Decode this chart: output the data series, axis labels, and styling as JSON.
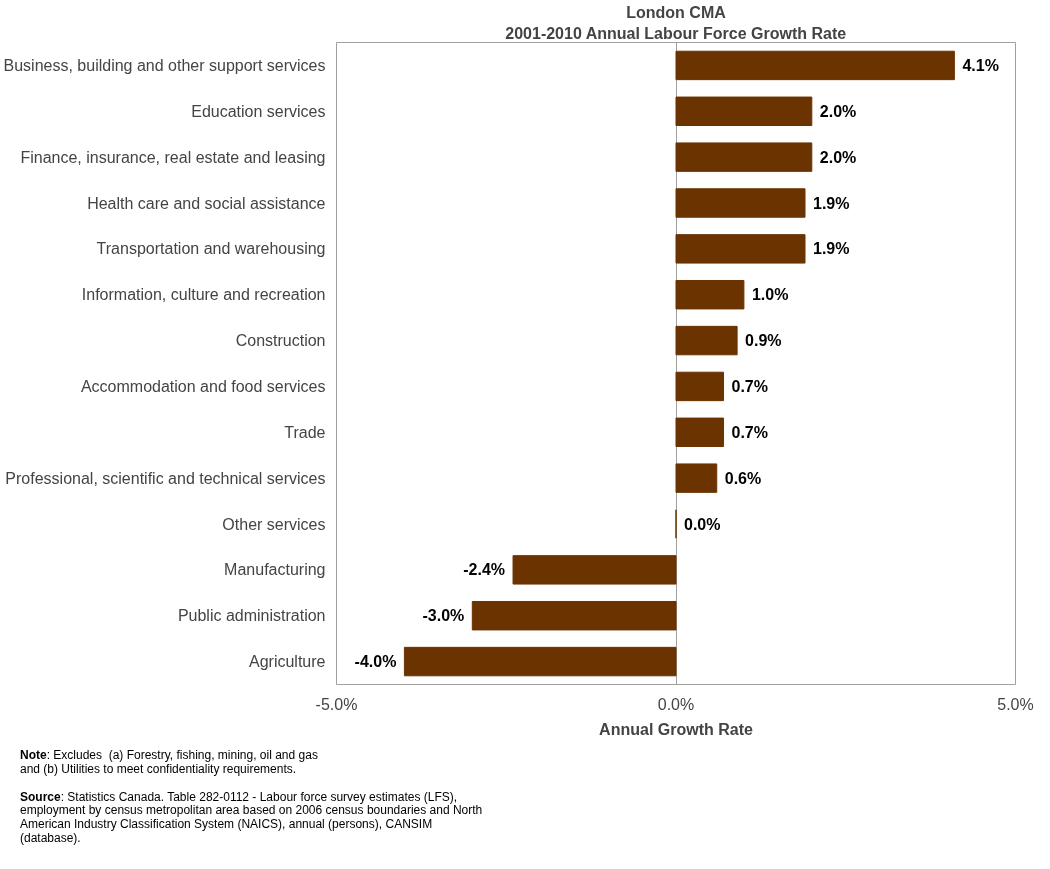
{
  "chart_data": {
    "type": "bar",
    "orientation": "horizontal",
    "title": "London CMA",
    "subtitle": "2001-2010 Annual Labour Force Growth Rate",
    "xlabel": "Annual Growth Rate",
    "categories": [
      "Business, building and other support services",
      "Education services",
      "Finance, insurance, real estate and leasing",
      "Health care and social assistance",
      "Transportation and warehousing",
      "Information, culture and recreation",
      "Construction",
      "Accommodation and food services",
      "Trade",
      "Professional, scientific and technical services",
      "Other services",
      "Manufacturing",
      "Public administration",
      "Agriculture"
    ],
    "values": [
      4.1,
      2.0,
      2.0,
      1.9,
      1.9,
      1.0,
      0.9,
      0.7,
      0.7,
      0.6,
      0.0,
      -2.4,
      -3.0,
      -4.0
    ],
    "value_labels": [
      "4.1%",
      "2.0%",
      "2.0%",
      "1.9%",
      "1.9%",
      "1.0%",
      "0.9%",
      "0.7%",
      "0.7%",
      "0.6%",
      "0.0%",
      "-2.4%",
      "-3.0%",
      "-4.0%"
    ],
    "color": "#6b3300",
    "xlim": [
      -5,
      5
    ],
    "xticks": [
      {
        "value": -5,
        "label": "-5.0%"
      },
      {
        "value": 0,
        "label": "0.0%"
      },
      {
        "value": 5,
        "label": "5.0%"
      }
    ],
    "grid": "x",
    "annotations": [
      "Note: Excludes  (a) Forestry, fishing, mining, oil and gas\nand (b) Utilities to meet confidentiality requirements.",
      "Source: Statistics Canada. Table 282-0112 - Labour force survey estimates (LFS),\nemployment by census metropolitan area based on 2006 census boundaries and North\nAmerican Industry Classification System (NAICS), annual (persons), CANSIM\n(database)."
    ]
  }
}
